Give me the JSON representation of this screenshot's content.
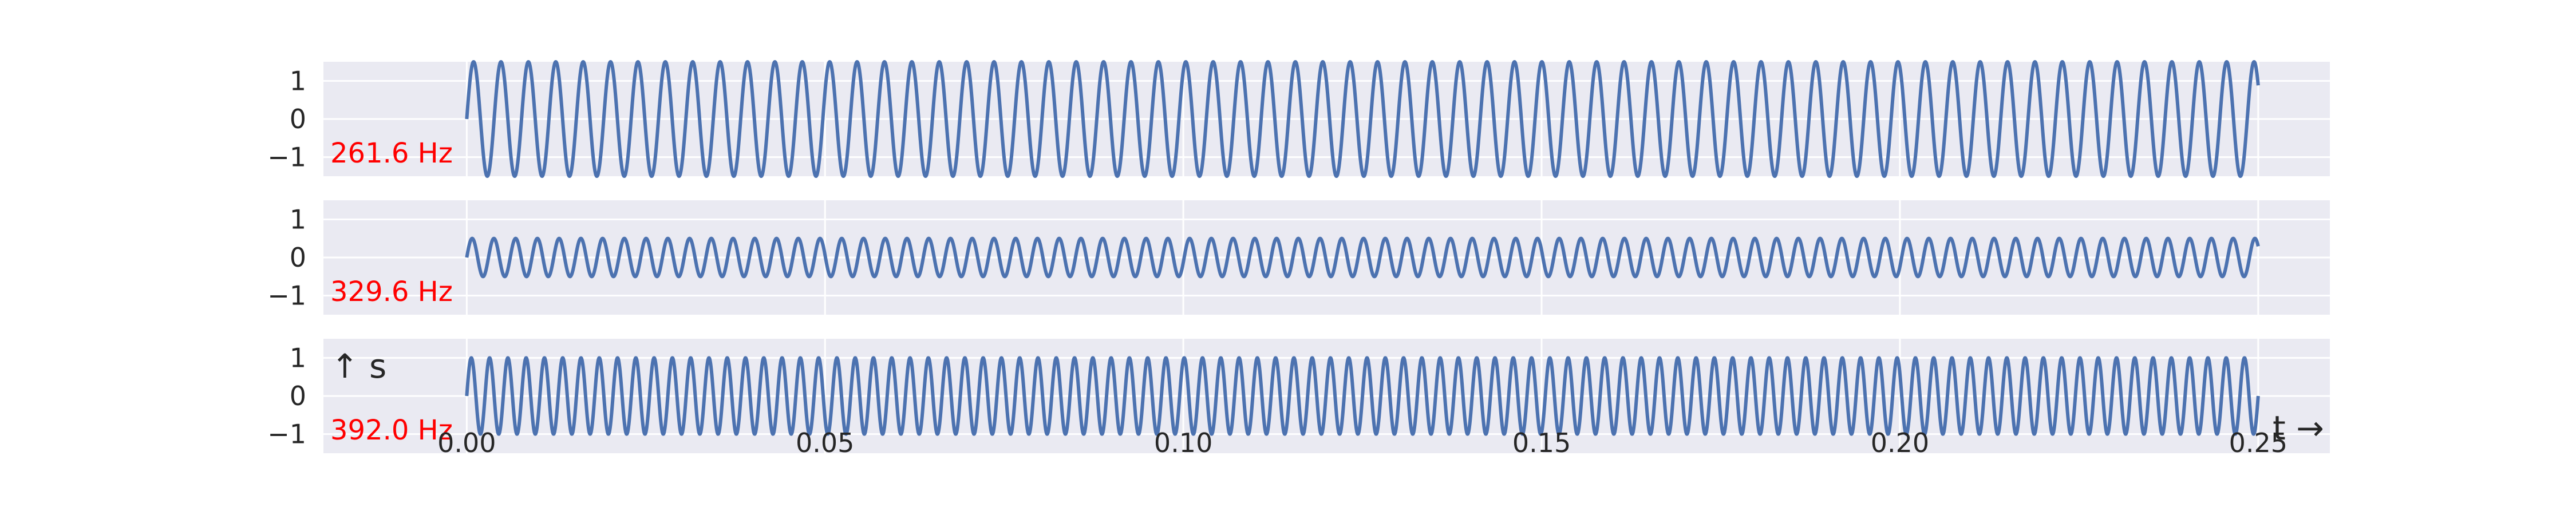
{
  "chart_data": {
    "type": "line",
    "xlim": [
      -0.02,
      0.26
    ],
    "x_ticks": [
      "0.00",
      "0.05",
      "0.10",
      "0.15",
      "0.20",
      "0.25"
    ],
    "x_tick_values": [
      0.0,
      0.05,
      0.1,
      0.15,
      0.2,
      0.25
    ],
    "t_range": [
      0.0,
      0.25
    ],
    "xlabel": "t →",
    "ylabel": "↑ s",
    "grid": true,
    "background": "#eaeaf2",
    "line_color": "#4c72b0",
    "annotation_color": "#ff0000",
    "panels": [
      {
        "series_name": "261.6 Hz",
        "label": "261.6 Hz",
        "frequency_hz": 261.6,
        "amplitude": 1.5,
        "function": "sine",
        "ylim": [
          -1.5,
          1.5
        ],
        "y_ticks": [
          "1",
          "0",
          "−1"
        ],
        "y_tick_values": [
          1,
          0,
          -1
        ]
      },
      {
        "series_name": "329.6 Hz",
        "label": "329.6 Hz",
        "frequency_hz": 329.6,
        "amplitude": 0.5,
        "function": "sine",
        "ylim": [
          -1.5,
          1.5
        ],
        "y_ticks": [
          "1",
          "0",
          "−1"
        ],
        "y_tick_values": [
          1,
          0,
          -1
        ]
      },
      {
        "series_name": "392.0 Hz",
        "label": "392.0 Hz",
        "frequency_hz": 392.0,
        "amplitude": 1.0,
        "function": "sine",
        "ylim": [
          -1.5,
          1.5
        ],
        "y_ticks": [
          "1",
          "0",
          "−1"
        ],
        "y_tick_values": [
          1,
          0,
          -1
        ]
      }
    ]
  }
}
